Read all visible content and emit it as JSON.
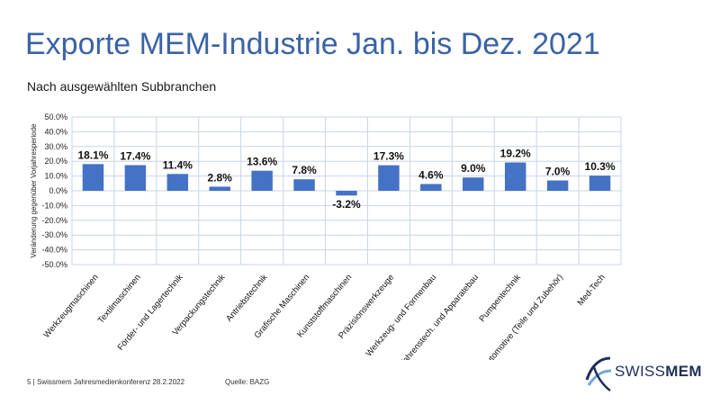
{
  "slide": {
    "title": "Exporte MEM-Industrie Jan. bis Dez. 2021",
    "subtitle": "Nach ausgewählten Subbranchen",
    "footer": "5 | Swissmem Jahresmedienkonferenz 28.2.2022",
    "source": "Quelle: BAZG",
    "logo": {
      "light": "SWISS",
      "bold": "MEM"
    }
  },
  "colors": {
    "title": "#3a63a6",
    "bar": "#4472c4",
    "grid": "#c7d4e8",
    "logo": "#1d2f59"
  },
  "chart_data": {
    "type": "bar",
    "title": "",
    "xlabel": "",
    "ylabel": "Veränderung gegenüber Vorjahresperiode",
    "ylim": [
      -50,
      50
    ],
    "yticks": [
      50,
      40,
      30,
      20,
      10,
      0,
      -10,
      -20,
      -30,
      -40,
      -50
    ],
    "ytick_labels": [
      "50.0%",
      "40.0%",
      "30.0%",
      "20.0%",
      "10.0%",
      "0.0%",
      "-10.0%",
      "-20.0%",
      "-30.0%",
      "-40.0%",
      "-50.0%"
    ],
    "grid": true,
    "categories": [
      "Werkzeugmaschinen",
      "Textilmaschinen",
      "Förder- und Lagertechnik",
      "Verpackungstechnik",
      "Antriebstechnik",
      "Grafische Maschinen",
      "Kunststoffmaschinen",
      "Präzisionswerkzeuge",
      "Werkzeug- und Formenbau",
      "Verfahrenstech. und Apparatebau",
      "Pumpentechnik",
      "Automotive (Teile und Zubehör)",
      "Med-Tech"
    ],
    "values": [
      18.1,
      17.4,
      11.4,
      2.8,
      13.6,
      7.8,
      -3.2,
      17.3,
      4.6,
      9.0,
      19.2,
      7.0,
      10.3
    ],
    "data_labels": [
      "18.1%",
      "17.4%",
      "11.4%",
      "2.8%",
      "13.6%",
      "7.8%",
      "-3.2%",
      "17.3%",
      "4.6%",
      "9.0%",
      "19.2%",
      "7.0%",
      "10.3%"
    ]
  }
}
